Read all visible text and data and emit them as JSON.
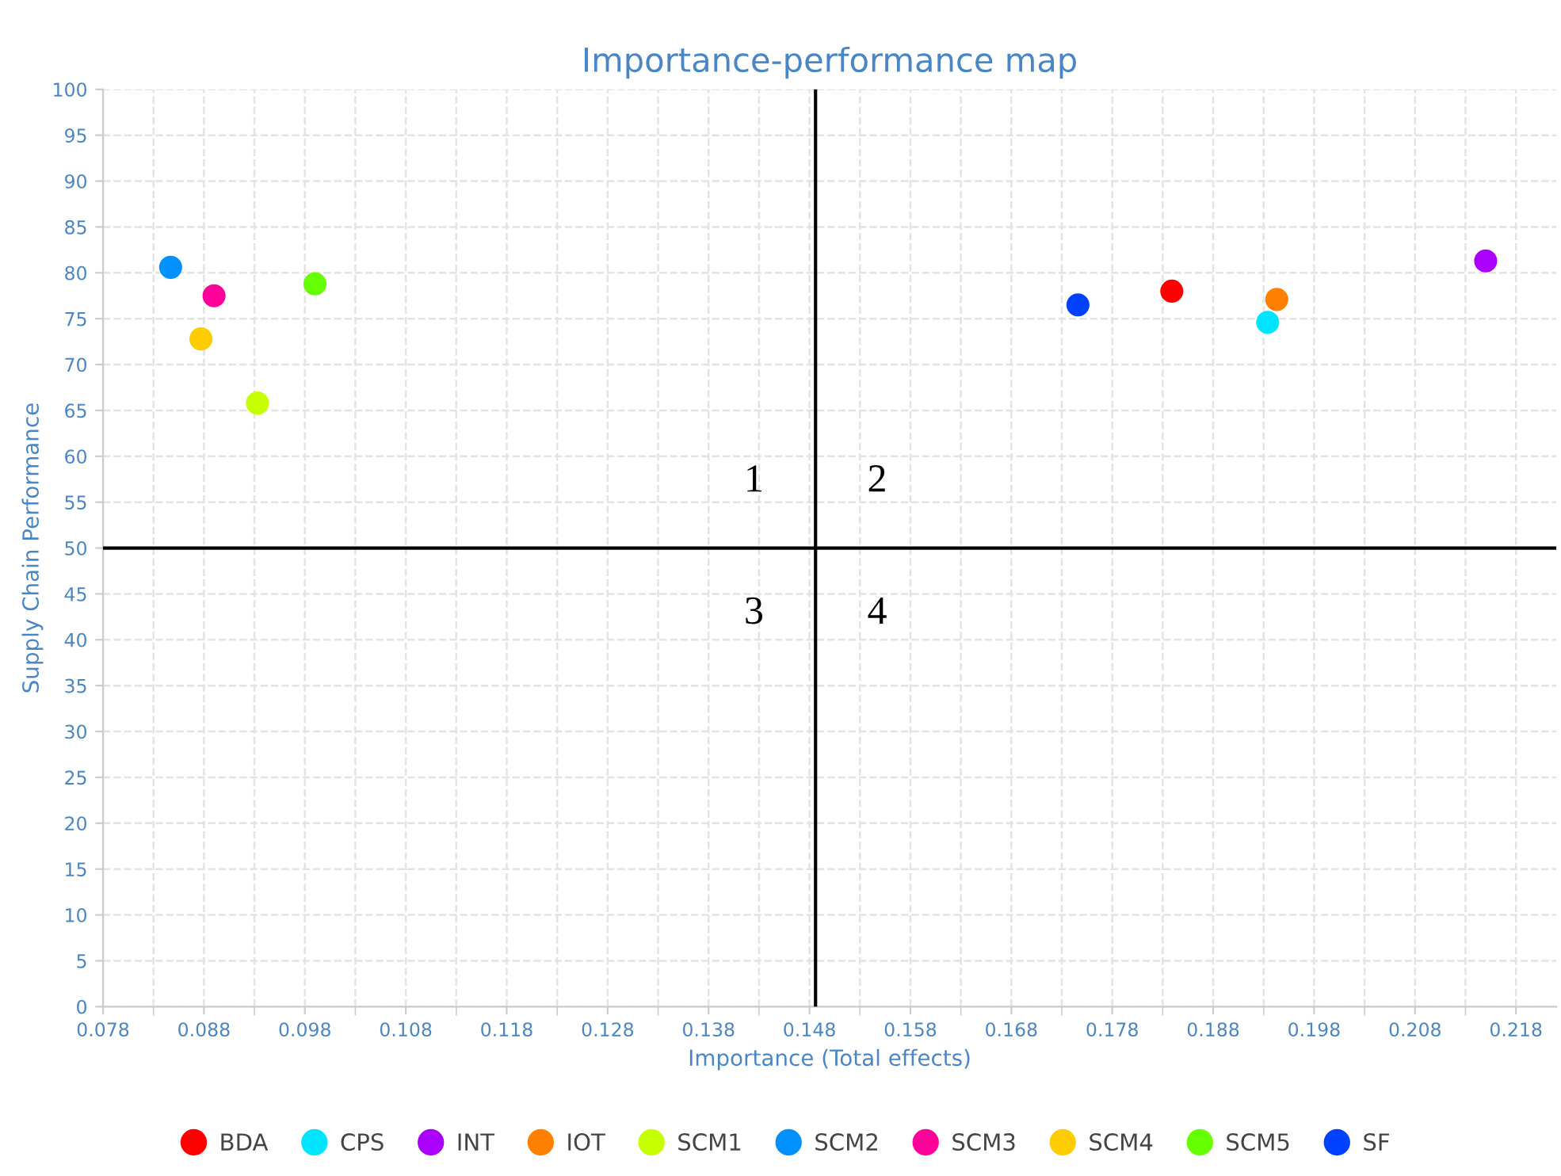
{
  "chart_data": {
    "type": "scatter",
    "title": "Importance-performance map",
    "xlabel": "Importance (Total effects)",
    "ylabel": "Supply Chain Performance",
    "xlim": [
      0.078,
      0.222
    ],
    "ylim": [
      0,
      100
    ],
    "xticks": [
      0.078,
      0.088,
      0.098,
      0.108,
      0.118,
      0.128,
      0.138,
      0.148,
      0.158,
      0.168,
      0.178,
      0.188,
      0.198,
      0.208,
      0.218
    ],
    "yticks": [
      0,
      5,
      10,
      15,
      20,
      25,
      30,
      35,
      40,
      45,
      50,
      55,
      60,
      65,
      70,
      75,
      80,
      85,
      90,
      95,
      100
    ],
    "grid": true,
    "legend": "bottom",
    "marker": "circle",
    "series": [
      {
        "name": "BDA",
        "color": "#ff0000",
        "x": [
          0.1839
        ],
        "values": [
          78.0
        ]
      },
      {
        "name": "CPS",
        "color": "#00e5ff",
        "x": [
          0.1934
        ],
        "values": [
          74.6
        ]
      },
      {
        "name": "INT",
        "color": "#aa00ff",
        "x": [
          0.215
        ],
        "values": [
          81.3
        ]
      },
      {
        "name": "IOT",
        "color": "#ff7f00",
        "x": [
          0.1943
        ],
        "values": [
          77.1
        ]
      },
      {
        "name": "SCM1",
        "color": "#c6ff00",
        "x": [
          0.0933
        ],
        "values": [
          65.8
        ]
      },
      {
        "name": "SCM2",
        "color": "#0091ff",
        "x": [
          0.0847
        ],
        "values": [
          80.6
        ]
      },
      {
        "name": "SCM3",
        "color": "#ff0099",
        "x": [
          0.089
        ],
        "values": [
          77.5
        ]
      },
      {
        "name": "SCM4",
        "color": "#ffcc00",
        "x": [
          0.0877
        ],
        "values": [
          72.8
        ]
      },
      {
        "name": "SCM5",
        "color": "#66ff00",
        "x": [
          0.099
        ],
        "values": [
          78.8
        ]
      },
      {
        "name": "SF",
        "color": "#0040ff",
        "x": [
          0.1746
        ],
        "values": [
          76.5
        ]
      }
    ],
    "ref_lines": [
      {
        "axis": "y",
        "value": 50,
        "color": "#000000"
      },
      {
        "axis": "x",
        "value": 0.1486,
        "color": "#000000"
      }
    ],
    "annotations": [
      "1",
      "2",
      "3",
      "4"
    ]
  }
}
